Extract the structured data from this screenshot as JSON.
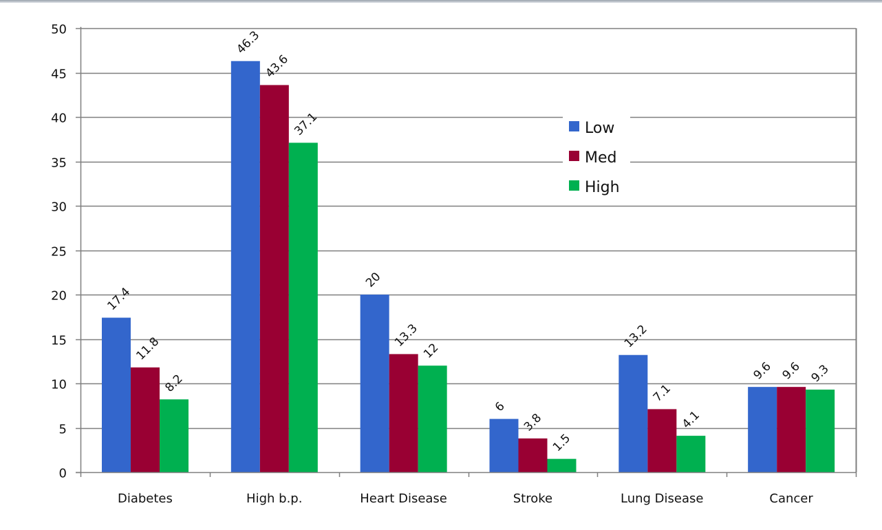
{
  "chart_data": {
    "type": "bar",
    "title": "",
    "xlabel": "",
    "ylabel": "",
    "categories": [
      "Diabetes",
      "High b.p.",
      "Heart Disease",
      "Stroke",
      "Lung Disease",
      "Cancer"
    ],
    "series": [
      {
        "name": "Low",
        "color": "#3366cc",
        "values": [
          17.4,
          46.3,
          20,
          6,
          13.2,
          9.6
        ],
        "labels": [
          "17.4",
          "46.3",
          "20",
          "6",
          "13.2",
          "9.6"
        ]
      },
      {
        "name": "Med",
        "color": "#990033",
        "values": [
          11.8,
          43.6,
          13.3,
          3.8,
          7.1,
          9.6
        ],
        "labels": [
          "11.8",
          "43.6",
          "13.3",
          "3.8",
          "7.1",
          "9.6"
        ]
      },
      {
        "name": "High",
        "color": "#00b050",
        "values": [
          8.2,
          37.1,
          12,
          1.5,
          4.1,
          9.3
        ],
        "labels": [
          "8.2",
          "37.1",
          "12",
          "1.5",
          "4.1",
          "9.3"
        ]
      }
    ],
    "ylim": [
      0,
      50
    ],
    "yticks": [
      "0",
      "5",
      "10",
      "15",
      "20",
      "25",
      "30",
      "35",
      "40",
      "45",
      "50"
    ],
    "grid": true,
    "legend_position": "top-right-inside"
  }
}
